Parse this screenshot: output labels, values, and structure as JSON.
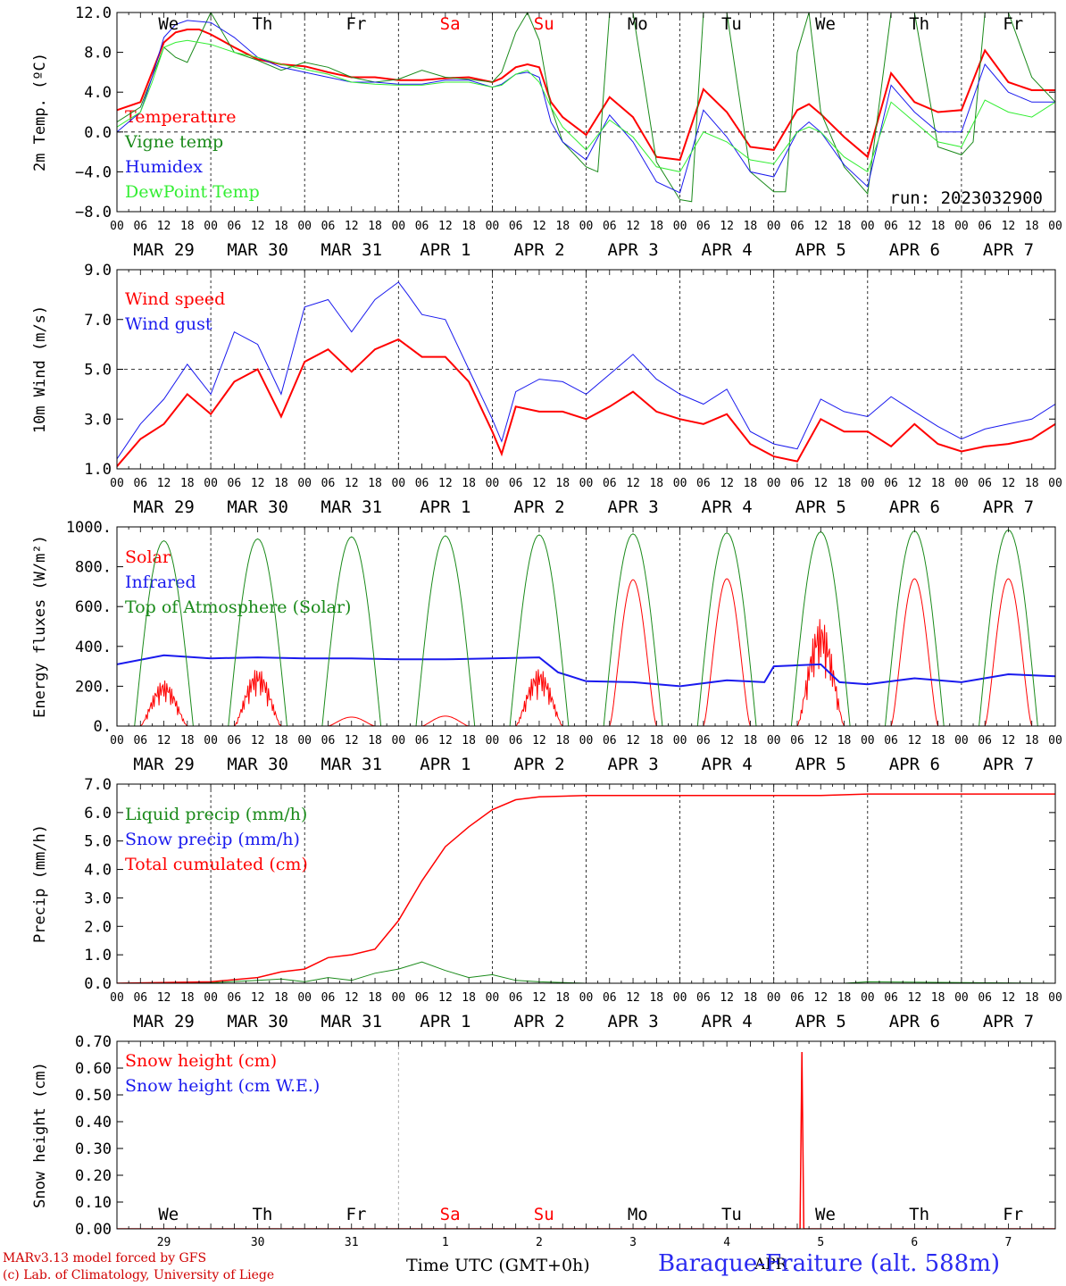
{
  "colors": {
    "red": "#ff0000",
    "green": "#1a8a1a",
    "lightgreen": "#33ee33",
    "blue": "#1a1aee",
    "purple": "#8a2be2",
    "station": "#2a2af0"
  },
  "days": [
    {
      "dow": "We",
      "date": "MAR 29",
      "num": "29",
      "weekend": false
    },
    {
      "dow": "Th",
      "date": "MAR 30",
      "num": "30",
      "weekend": false
    },
    {
      "dow": "Fr",
      "date": "MAR 31",
      "num": "31",
      "weekend": false
    },
    {
      "dow": "Sa",
      "date": "APR  1",
      "num": "1",
      "weekend": true
    },
    {
      "dow": "Su",
      "date": "APR  2",
      "num": "2",
      "weekend": true
    },
    {
      "dow": "Mo",
      "date": "APR  3",
      "num": "3",
      "weekend": false
    },
    {
      "dow": "Tu",
      "date": "APR  4",
      "num": "4",
      "weekend": false
    },
    {
      "dow": "We",
      "date": "APR  5",
      "num": "5",
      "weekend": false
    },
    {
      "dow": "Th",
      "date": "APR  6",
      "num": "6",
      "weekend": false
    },
    {
      "dow": "Fr",
      "date": "APR  7",
      "num": "7",
      "weekend": false
    }
  ],
  "hour_labels": [
    "00",
    "06",
    "12",
    "18"
  ],
  "run_label": "run: 2023032900",
  "xlabel": "Time UTC (GMT+0h)",
  "month_label": "APR",
  "credits": [
    "MARv3.13 model forced by GFS",
    "(c) Lab. of Climatology, University of Liege"
  ],
  "station": "Baraque-Fraiture (alt. 588m)",
  "chart_data": [
    {
      "type": "line",
      "ylabel": "2m Temp. (ºC)",
      "ylim": [
        -8,
        12
      ],
      "yticks": [
        -8,
        -4,
        0,
        4,
        8,
        12
      ],
      "ytick_labels": [
        "−8.0",
        "−4.0",
        "0.0",
        "4.0",
        "8.0",
        "12.0"
      ],
      "ref_line": 0,
      "run_label": true,
      "series": [
        {
          "name": "Temperature",
          "color": "red",
          "width": 2,
          "x": [
            0,
            0.25,
            0.375,
            0.5,
            0.625,
            0.75,
            0.875,
            1,
            1.25,
            1.5,
            1.75,
            2,
            2.25,
            2.5,
            2.75,
            3,
            3.25,
            3.5,
            3.75,
            4,
            4.1,
            4.25,
            4.375,
            4.5,
            4.625,
            4.75,
            5,
            5.25,
            5.5,
            5.75,
            6,
            6.25,
            6.5,
            6.75,
            7,
            7.25,
            7.375,
            7.5,
            7.75,
            8,
            8.25,
            8.5,
            8.75,
            9,
            9.25,
            9.5,
            9.75,
            10
          ],
          "y": [
            2.2,
            3,
            6,
            9,
            10,
            10.3,
            10.3,
            9.8,
            8.5,
            7.3,
            6.8,
            6.6,
            6,
            5.5,
            5.5,
            5.2,
            5.2,
            5.4,
            5.5,
            5,
            5.4,
            6.5,
            6.8,
            6.5,
            3,
            1.5,
            -0.3,
            3.5,
            1.5,
            -2.5,
            -2.8,
            4.3,
            2,
            -1.5,
            -1.8,
            2.2,
            2.8,
            1.8,
            -0.5,
            -2.5,
            5.9,
            3,
            2,
            2.2,
            8.2,
            5,
            4.2,
            4.2
          ]
        },
        {
          "name": "Vigne temp",
          "color": "green",
          "width": 1,
          "x": [
            0,
            0.25,
            0.375,
            0.5,
            0.625,
            0.75,
            1,
            1.25,
            1.5,
            1.75,
            2,
            2.25,
            2.5,
            2.75,
            3,
            3.25,
            3.5,
            3.75,
            4,
            4.1,
            4.25,
            4.375,
            4.5,
            4.625,
            4.75,
            5,
            5.125,
            5.25,
            5.5,
            5.75,
            6,
            6.125,
            6.25,
            6.5,
            6.75,
            7,
            7.125,
            7.25,
            7.375,
            7.5,
            7.75,
            8,
            8.25,
            8.5,
            8.75,
            9,
            9.125,
            9.25,
            9.5,
            9.75,
            10
          ],
          "y": [
            1,
            2.5,
            5.5,
            8.5,
            7.5,
            7,
            12,
            8,
            7.2,
            6.2,
            7,
            6.5,
            5.5,
            5,
            5.3,
            6.2,
            5.5,
            5.3,
            5,
            6,
            10,
            12,
            9.2,
            2.5,
            -1,
            -3.5,
            -4,
            12,
            12,
            -3,
            -6.8,
            -7,
            12,
            12,
            -4,
            -6,
            -6,
            8,
            12,
            2,
            -3.5,
            -6.2,
            12,
            12,
            -1.5,
            -2.3,
            -1,
            12,
            12,
            5.5,
            3
          ]
        },
        {
          "name": "Humidex",
          "color": "blue",
          "width": 1,
          "x": [
            0,
            0.25,
            0.375,
            0.5,
            0.625,
            0.75,
            1,
            1.25,
            1.5,
            1.75,
            2,
            2.25,
            2.5,
            2.75,
            3,
            3.25,
            3.5,
            3.75,
            4,
            4.1,
            4.25,
            4.375,
            4.5,
            4.625,
            4.75,
            5,
            5.25,
            5.5,
            5.75,
            6,
            6.25,
            6.5,
            6.75,
            7,
            7.25,
            7.375,
            7.5,
            7.75,
            8,
            8.25,
            8.5,
            8.75,
            9,
            9.25,
            9.5,
            9.75,
            10
          ],
          "y": [
            0,
            2,
            5.5,
            9.5,
            10.8,
            11.2,
            11,
            9.5,
            7.5,
            6.5,
            6,
            5.5,
            5,
            5,
            4.8,
            4.8,
            5.2,
            5.2,
            4.5,
            4.8,
            5.8,
            6,
            5.5,
            1,
            -1,
            -2.8,
            1.7,
            -1,
            -5,
            -6.1,
            2.2,
            -0.5,
            -4,
            -4.5,
            0,
            1,
            0,
            -3.3,
            -5.5,
            4.7,
            2,
            0,
            0,
            6.8,
            4,
            3,
            3
          ]
        },
        {
          "name": "DewPoint Temp",
          "color": "lightgreen",
          "width": 1,
          "x": [
            0,
            0.25,
            0.375,
            0.5,
            0.625,
            0.75,
            1,
            1.25,
            1.5,
            1.75,
            2,
            2.25,
            2.5,
            2.75,
            3,
            3.25,
            3.5,
            3.75,
            4,
            4.1,
            4.25,
            4.375,
            4.5,
            4.625,
            4.75,
            5,
            5.25,
            5.5,
            5.75,
            6,
            6.25,
            6.5,
            6.75,
            7,
            7.25,
            7.375,
            7.5,
            7.75,
            8,
            8.25,
            8.5,
            8.75,
            9,
            9.25,
            9.5,
            9.75,
            10
          ],
          "y": [
            0.5,
            2,
            5,
            8.5,
            9,
            9.2,
            8.8,
            8,
            7.5,
            6.8,
            6.3,
            5.8,
            5,
            4.8,
            4.7,
            4.7,
            5,
            5,
            4.5,
            4.7,
            5.8,
            6.2,
            5,
            2.5,
            0.5,
            -1.8,
            1.2,
            -0.5,
            -3.5,
            -4,
            0,
            -1,
            -2.8,
            -3.2,
            0,
            0.5,
            0,
            -2.5,
            -4,
            3,
            1,
            -1,
            -1.5,
            3.2,
            2,
            1.5,
            3
          ]
        }
      ]
    },
    {
      "type": "line",
      "ylabel": "10m Wind (m/s)",
      "ylim": [
        1,
        9
      ],
      "yticks": [
        1,
        3,
        5,
        7,
        9
      ],
      "ytick_labels": [
        "1.0",
        "3.0",
        "5.0",
        "7.0",
        "9.0"
      ],
      "ref_line": 5,
      "series": [
        {
          "name": "Wind speed",
          "color": "red",
          "width": 2,
          "x": [
            0,
            0.25,
            0.5,
            0.75,
            1,
            1.25,
            1.5,
            1.75,
            2,
            2.25,
            2.5,
            2.75,
            3,
            3.25,
            3.5,
            3.75,
            4,
            4.1,
            4.25,
            4.5,
            4.75,
            5,
            5.25,
            5.5,
            5.75,
            6,
            6.25,
            6.5,
            6.75,
            7,
            7.25,
            7.5,
            7.75,
            8,
            8.25,
            8.5,
            8.75,
            9,
            9.25,
            9.5,
            9.75,
            10
          ],
          "y": [
            1.1,
            2.2,
            2.8,
            4,
            3.2,
            4.5,
            5,
            3.1,
            5.3,
            5.8,
            4.9,
            5.8,
            6.2,
            5.5,
            5.5,
            4.5,
            2.5,
            1.6,
            3.5,
            3.3,
            3.3,
            3,
            3.5,
            4.1,
            3.3,
            3,
            2.8,
            3.2,
            2,
            1.5,
            1.3,
            3,
            2.5,
            2.5,
            1.9,
            2.8,
            2,
            1.7,
            1.9,
            2,
            2.2,
            2.8
          ]
        },
        {
          "name": "Wind gust",
          "color": "blue",
          "width": 1,
          "x": [
            0,
            0.25,
            0.5,
            0.75,
            1,
            1.25,
            1.5,
            1.75,
            2,
            2.25,
            2.5,
            2.75,
            3,
            3.1,
            3.25,
            3.5,
            3.75,
            4,
            4.1,
            4.25,
            4.5,
            4.75,
            5,
            5.25,
            5.5,
            5.75,
            6,
            6.25,
            6.5,
            6.75,
            7,
            7.25,
            7.5,
            7.75,
            8,
            8.25,
            8.5,
            8.75,
            9,
            9.25,
            9.5,
            9.75,
            10
          ],
          "y": [
            1.4,
            2.8,
            3.8,
            5.2,
            4,
            6.5,
            6,
            4,
            7.5,
            7.8,
            6.5,
            7.8,
            8.5,
            8,
            7.2,
            7,
            5,
            3,
            2.1,
            4.1,
            4.6,
            4.5,
            4,
            4.8,
            5.6,
            4.6,
            4,
            3.6,
            4.2,
            2.5,
            2,
            1.8,
            3.8,
            3.3,
            3.1,
            3.9,
            3.3,
            2.7,
            2.2,
            2.6,
            2.8,
            3,
            3.6
          ]
        }
      ]
    },
    {
      "type": "line",
      "ylabel": "Energy fluxes (W/m²)",
      "ylim": [
        0,
        1000
      ],
      "yticks": [
        0,
        200,
        400,
        600,
        800,
        1000
      ],
      "ytick_labels": [
        "0.",
        "200.",
        "400.",
        "600.",
        "800.",
        "1000."
      ],
      "series": [
        {
          "name": "Solar",
          "color": "red",
          "width": 1,
          "curve": "solar",
          "peaks": [
            230,
            290,
            45,
            50,
            290,
            735,
            740,
            540,
            740,
            740
          ],
          "spiky": [
            1,
            1,
            0,
            0,
            1,
            0,
            0,
            1,
            0,
            0
          ]
        },
        {
          "name": "Infrared",
          "color": "blue",
          "width": 2,
          "x": [
            0,
            0.5,
            1,
            1.5,
            2,
            2.5,
            3,
            3.5,
            4,
            4.5,
            4.7,
            5,
            5.5,
            6,
            6.5,
            6.9,
            7,
            7.5,
            7.7,
            8,
            8.5,
            9,
            9.5,
            10
          ],
          "y": [
            310,
            355,
            340,
            345,
            340,
            340,
            335,
            335,
            340,
            345,
            270,
            225,
            220,
            200,
            230,
            220,
            300,
            310,
            220,
            210,
            240,
            220,
            260,
            250
          ]
        },
        {
          "name": "Top of Atmosphere (Solar)",
          "color": "green",
          "width": 1,
          "curve": "toa",
          "peaks": [
            930,
            940,
            950,
            955,
            960,
            965,
            970,
            975,
            980,
            985
          ]
        }
      ]
    },
    {
      "type": "line",
      "ylabel": "Precip (mm/h)",
      "ylim": [
        0,
        7
      ],
      "yticks": [
        0,
        1,
        2,
        3,
        4,
        5,
        6,
        7
      ],
      "ytick_labels": [
        "0.0",
        "1.0",
        "2.0",
        "3.0",
        "4.0",
        "5.0",
        "6.0",
        "7.0"
      ],
      "series": [
        {
          "name": "Liquid precip (mm/h)",
          "color": "green",
          "width": 1,
          "x": [
            0,
            1,
            1.5,
            1.75,
            2,
            2.25,
            2.5,
            2.75,
            3,
            3.25,
            3.5,
            3.75,
            4,
            4.25,
            4.5,
            5,
            7.75,
            8,
            10
          ],
          "y": [
            0,
            0.02,
            0.1,
            0.15,
            0.05,
            0.2,
            0.1,
            0.35,
            0.5,
            0.75,
            0.45,
            0.2,
            0.3,
            0.1,
            0.05,
            0,
            0,
            0.05,
            0
          ]
        },
        {
          "name": "Snow precip (mm/h)",
          "color": "blue",
          "width": 1,
          "x": [
            0,
            10
          ],
          "y": [
            0,
            0
          ]
        },
        {
          "name": "Total cumulated (cm)",
          "color": "red",
          "width": 1.5,
          "x": [
            0,
            1,
            1.5,
            1.75,
            2,
            2.25,
            2.5,
            2.75,
            3,
            3.25,
            3.5,
            3.75,
            4,
            4.25,
            4.5,
            5,
            7.5,
            8,
            10
          ],
          "y": [
            0,
            0.05,
            0.2,
            0.4,
            0.5,
            0.9,
            1,
            1.2,
            2.2,
            3.6,
            4.8,
            5.5,
            6.1,
            6.45,
            6.55,
            6.6,
            6.6,
            6.65,
            6.65
          ]
        }
      ]
    },
    {
      "type": "line",
      "ylabel": "Snow height (cm)",
      "ylim": [
        0,
        0.7
      ],
      "yticks": [
        0,
        0.1,
        0.2,
        0.3,
        0.4,
        0.5,
        0.6,
        0.7
      ],
      "ytick_labels": [
        "0.00",
        "0.10",
        "0.20",
        "0.30",
        "0.40",
        "0.50",
        "0.60",
        "0.70"
      ],
      "series": [
        {
          "name": "Snow height (cm)",
          "color": "red",
          "width": 1.5,
          "x": [
            0,
            7.28,
            7.3,
            7.32,
            10
          ],
          "y": [
            0,
            0,
            0.66,
            0,
            0
          ]
        },
        {
          "name": "Snow height (cm W.E.)",
          "color": "blue",
          "width": 1,
          "x": [
            0,
            10
          ],
          "y": [
            0,
            0
          ]
        }
      ]
    }
  ]
}
